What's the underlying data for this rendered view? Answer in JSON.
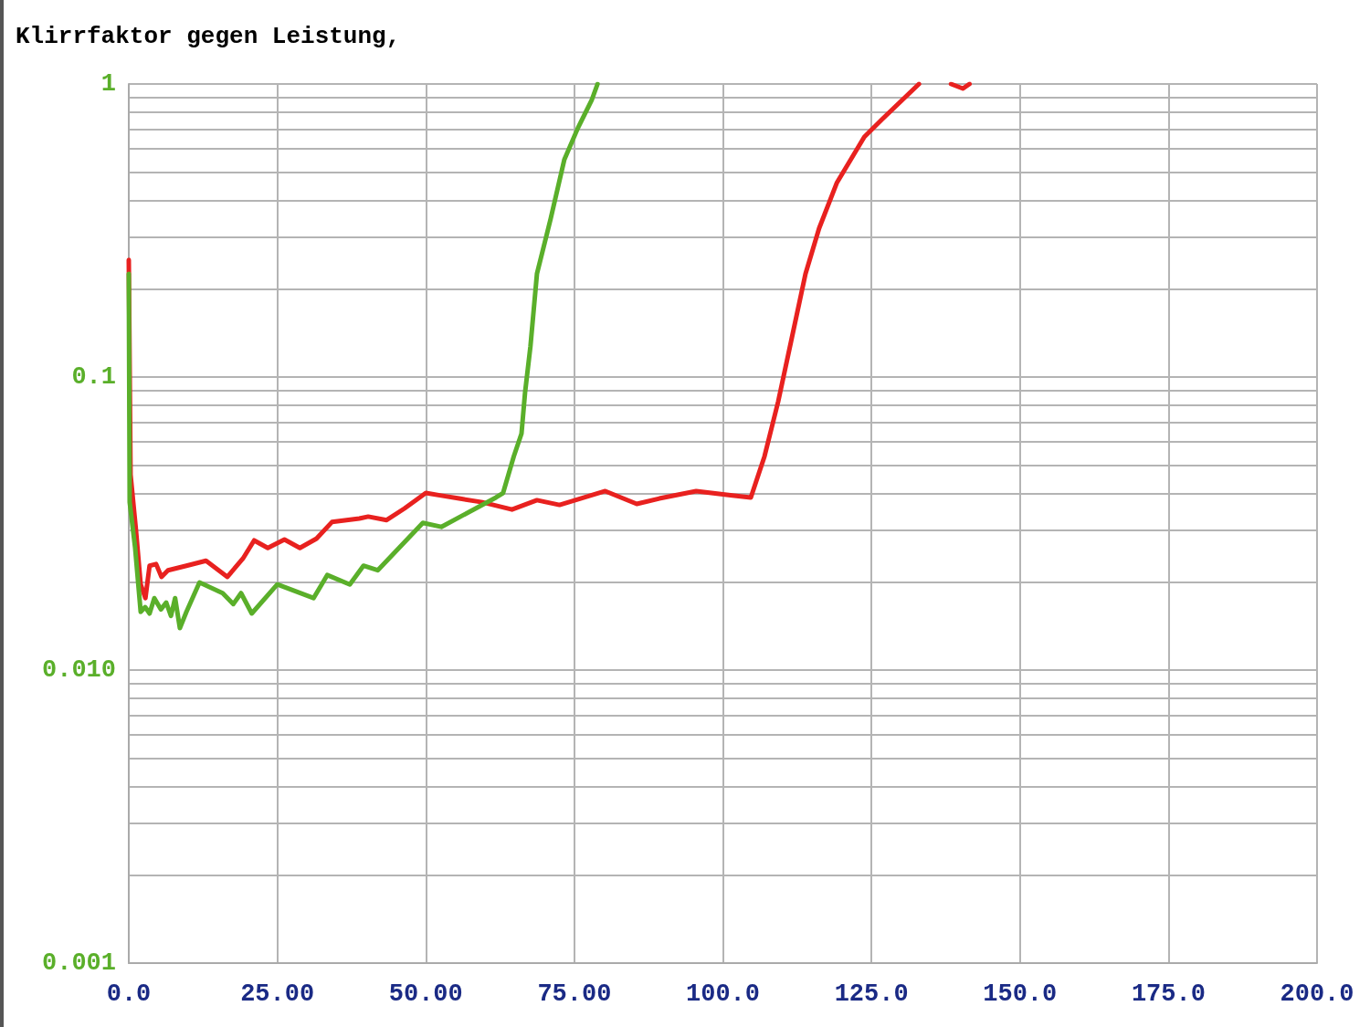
{
  "chart_data": {
    "type": "line",
    "title": "Klirrfaktor gegen Leistung,",
    "xlim": [
      0,
      200
    ],
    "xticks": [
      {
        "value": 0,
        "label": "0.0"
      },
      {
        "value": 25,
        "label": "25.00"
      },
      {
        "value": 50,
        "label": "50.00"
      },
      {
        "value": 75,
        "label": "75.00"
      },
      {
        "value": 100,
        "label": "100.0"
      },
      {
        "value": 125,
        "label": "125.0"
      },
      {
        "value": 150,
        "label": "150.0"
      },
      {
        "value": 175,
        "label": "175.0"
      },
      {
        "value": 200,
        "label": "200.0"
      }
    ],
    "ylim": [
      0.001,
      1
    ],
    "log": true,
    "yticks": [
      0.001,
      {
        "value": 0.002,
        "label": null
      },
      {
        "value": 0.003,
        "label": null
      },
      {
        "value": 0.004,
        "label": null
      },
      {
        "value": 0.005,
        "label": null
      },
      {
        "value": 0.006,
        "label": null
      },
      {
        "value": 0.007,
        "label": null
      },
      {
        "value": 0.008,
        "label": null
      },
      {
        "value": 0.009,
        "label": null
      },
      {
        "value": 0.01,
        "label": "0.010"
      },
      {
        "value": 0.02,
        "label": null
      },
      {
        "value": 0.03,
        "label": null
      },
      {
        "value": 0.04,
        "label": null
      },
      {
        "value": 0.05,
        "label": null
      },
      {
        "value": 0.06,
        "label": null
      },
      {
        "value": 0.07,
        "label": null
      },
      {
        "value": 0.08,
        "label": null
      },
      {
        "value": 0.09,
        "label": null
      },
      0.1,
      {
        "value": 0.2,
        "label": null
      },
      {
        "value": 0.3,
        "label": null
      },
      {
        "value": 0.4,
        "label": null
      },
      {
        "value": 0.5,
        "label": null
      },
      {
        "value": 0.6,
        "label": null
      },
      {
        "value": 0.7,
        "label": null
      },
      {
        "value": 0.8,
        "label": null
      },
      {
        "value": 0.9,
        "label": null
      },
      1
    ],
    "grid": true,
    "marker": "none",
    "line_style": "solid",
    "series": [
      {
        "color": "#e8211f",
        "x": [
          0,
          0.3,
          1.2,
          2.0,
          2.8,
          3.5,
          4.6,
          5.5,
          6.6,
          9.7,
          13.0,
          16.6,
          19.2,
          21.1,
          23.4,
          26.2,
          28.8,
          31.6,
          34.2,
          38.8,
          40.3,
          43.4,
          46.4,
          50.0,
          52.6,
          55.6,
          59.5,
          64.5,
          68.7,
          72.5,
          80.2,
          85.5,
          89.3,
          95.5,
          101.6,
          104.7,
          107.0,
          109.3,
          111.6,
          113.9,
          116.2,
          119.2,
          123.8,
          126.9,
          133.0,
          135.0,
          138.4,
          140.4,
          141.5
        ],
        "values": [
          0.251,
          0.0464,
          0.0302,
          0.0196,
          0.0176,
          0.0227,
          0.023,
          0.0208,
          0.0219,
          0.0227,
          0.0236,
          0.0208,
          0.024,
          0.0277,
          0.0261,
          0.0279,
          0.0261,
          0.0281,
          0.032,
          0.0329,
          0.0334,
          0.0325,
          0.0356,
          0.0402,
          0.0394,
          0.0385,
          0.0374,
          0.0353,
          0.038,
          0.0366,
          0.0408,
          0.0369,
          0.0385,
          0.0408,
          0.0394,
          0.0388,
          0.0536,
          0.0824,
          0.136,
          0.225,
          0.322,
          0.461,
          0.66,
          0.761,
          1.0,
          null,
          1.0,
          0.965,
          1.0
        ]
      },
      {
        "color": "#5aaf2a",
        "x": [
          0,
          0.15,
          1.07,
          2.0,
          2.76,
          3.5,
          4.3,
          5.4,
          6.3,
          7.1,
          7.8,
          8.6,
          9.7,
          11.9,
          15.8,
          17.6,
          18.9,
          20.7,
          25.0,
          31.1,
          33.4,
          37.2,
          39.5,
          41.9,
          49.5,
          52.6,
          61.8,
          63.0,
          64.8,
          66.1,
          66.7,
          67.6,
          68.7,
          71.0,
          73.3,
          75.6,
          77.9,
          78.9
        ],
        "values": [
          0.225,
          0.0374,
          0.0261,
          0.0158,
          0.0164,
          0.0156,
          0.0176,
          0.0161,
          0.017,
          0.0153,
          0.0176,
          0.0139,
          0.0158,
          0.0199,
          0.0183,
          0.0168,
          0.0183,
          0.0156,
          0.0196,
          0.0176,
          0.0211,
          0.0196,
          0.0227,
          0.0219,
          0.0318,
          0.0308,
          0.0388,
          0.0402,
          0.0536,
          0.0641,
          0.0885,
          0.127,
          0.225,
          0.346,
          0.551,
          0.708,
          0.879,
          1.0
        ]
      }
    ]
  }
}
